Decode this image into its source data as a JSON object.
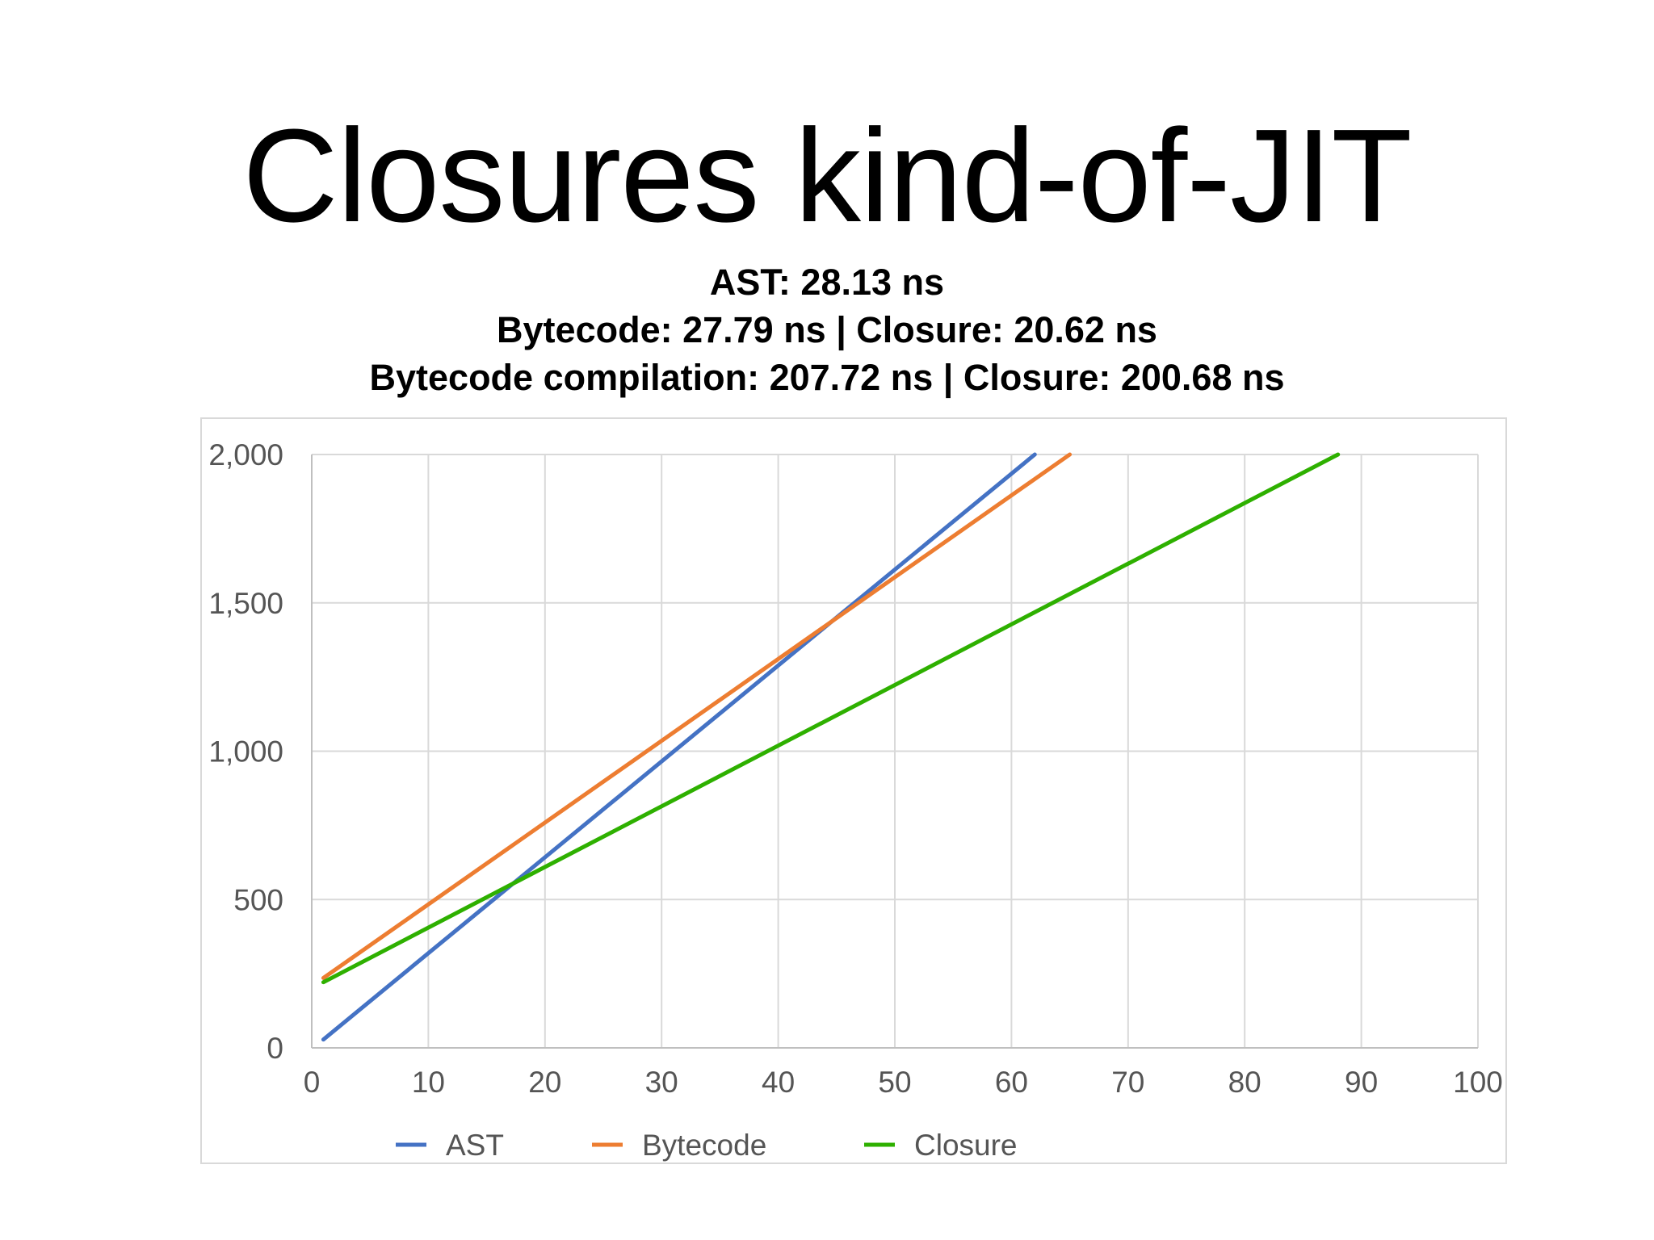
{
  "slide": {
    "title": "Closures kind-of-JIT",
    "subtitle_lines": [
      "AST:  28.13 ns",
      "Bytecode:  27.79 ns | Closure: 20.62 ns",
      "Bytecode compilation: 207.72 ns | Closure: 200.68 ns"
    ]
  },
  "chart_data": {
    "type": "line",
    "title": "",
    "xlabel": "",
    "ylabel": "",
    "xlim": [
      0,
      100
    ],
    "ylim": [
      0,
      2000
    ],
    "x_ticks": [
      "0",
      "10",
      "20",
      "30",
      "40",
      "50",
      "60",
      "70",
      "80",
      "90",
      "100"
    ],
    "y_ticks": [
      "0",
      "500",
      "1,000",
      "1,500",
      "2,000"
    ],
    "grid": true,
    "legend_position": "bottom",
    "series": [
      {
        "name": "AST",
        "color": "#4472C4",
        "x": [
          1,
          62
        ],
        "y": [
          28.13,
          2000
        ]
      },
      {
        "name": "Bytecode",
        "color": "#ED7D31",
        "x": [
          1,
          65
        ],
        "y": [
          235.5,
          2000
        ]
      },
      {
        "name": "Closure",
        "color": "#2EB000",
        "x": [
          1,
          88
        ],
        "y": [
          221.3,
          2000
        ]
      }
    ]
  }
}
